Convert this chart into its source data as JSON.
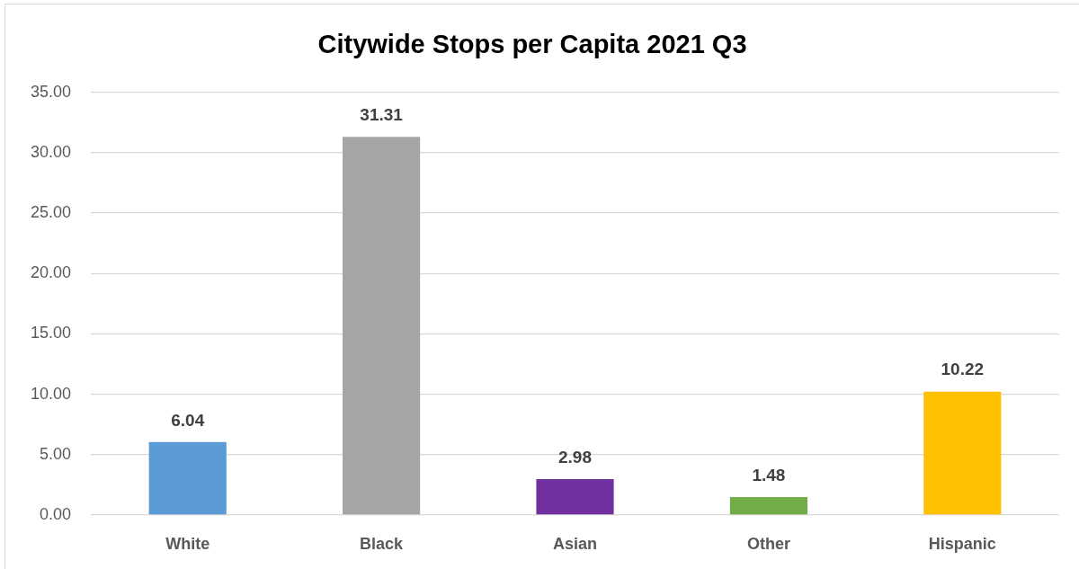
{
  "chart_data": {
    "type": "bar",
    "title": "Citywide Stops per Capita 2021 Q3",
    "categories": [
      "White",
      "Black",
      "Asian",
      "Other",
      "Hispanic"
    ],
    "values": [
      6.04,
      31.31,
      2.98,
      1.48,
      10.22
    ],
    "colors": [
      "#5b9bd5",
      "#a5a5a5",
      "#7030a0",
      "#70ad47",
      "#ffc000"
    ],
    "ylim": [
      0,
      35
    ],
    "yticks": [
      {
        "value": 0,
        "label": "0.00"
      },
      {
        "value": 5,
        "label": "5.00"
      },
      {
        "value": 10,
        "label": "10.00"
      },
      {
        "value": 15,
        "label": "15.00"
      },
      {
        "value": 20,
        "label": "20.00"
      },
      {
        "value": 25,
        "label": "25.00"
      },
      {
        "value": 30,
        "label": "30.00"
      },
      {
        "value": 35,
        "label": "35.00"
      }
    ],
    "grid": "y",
    "data_labels": true
  }
}
